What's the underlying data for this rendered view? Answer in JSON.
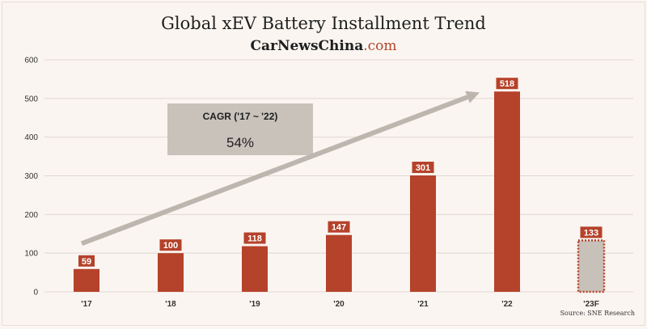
{
  "header": {
    "title": "Global xEV Battery Installment Trend",
    "brand_main": "CarNewsChina",
    "brand_suffix": ".com"
  },
  "source": "Source: SNE Research",
  "colors": {
    "bar": "#b5422a",
    "forecast_fill": "#c8c1ba",
    "forecast_border": "#b5422a",
    "arrow": "#bdb6ae",
    "annotation_box": "#c9c2bb",
    "grid": "#e0d8d1"
  },
  "chart_data": {
    "type": "bar",
    "categories": [
      "'17",
      "'18",
      "'19",
      "'20",
      "'21",
      "'22",
      "'23F"
    ],
    "values": [
      59,
      100,
      118,
      147,
      301,
      518,
      133
    ],
    "value_labels": [
      "59",
      "100",
      "118",
      "147",
      "301",
      "518",
      "133"
    ],
    "forecast_index": 6,
    "ylim": [
      0,
      600
    ],
    "yticks": [
      0,
      100,
      200,
      300,
      400,
      500,
      600
    ],
    "ytick_labels": [
      "0",
      "100",
      "200",
      "300",
      "400",
      "500",
      "600"
    ],
    "grid": true,
    "annotation": {
      "title": "CAGR ('17 ~ '22)",
      "value": "54%"
    },
    "trend_arrow": {
      "from_value": 150,
      "to_value": 505
    }
  }
}
